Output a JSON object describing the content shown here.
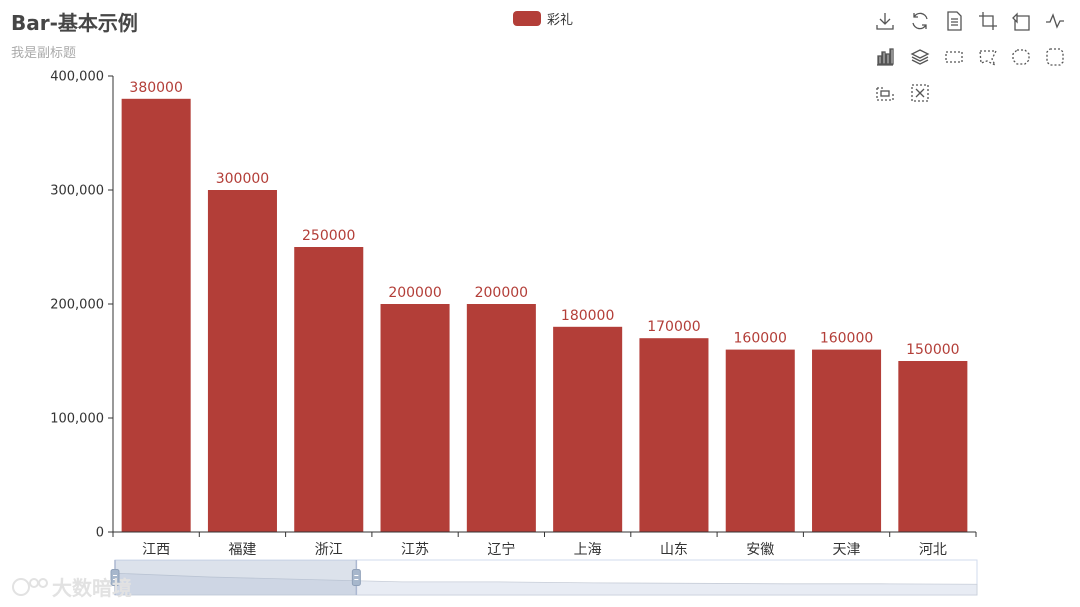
{
  "chart_data": {
    "type": "bar",
    "title": "Bar-基本示例",
    "subtitle": "我是副标题",
    "categories": [
      "江西",
      "福建",
      "浙江",
      "江苏",
      "辽宁",
      "上海",
      "山东",
      "安徽",
      "天津",
      "河北"
    ],
    "series": [
      {
        "name": "彩礼",
        "values": [
          380000,
          300000,
          250000,
          200000,
          200000,
          180000,
          170000,
          160000,
          160000,
          150000
        ],
        "color": "#b33e38"
      }
    ],
    "ylim": [
      0,
      400000
    ],
    "yticks": [
      0,
      100000,
      200000,
      300000,
      400000
    ],
    "ytick_labels": [
      "0",
      "100,000",
      "200,000",
      "300,000",
      "400,000"
    ],
    "legend_position": "top-center",
    "grid": false,
    "datazoom": {
      "start_fraction": 0,
      "end_fraction": 0.28
    }
  },
  "toolbox": {
    "icons": [
      "download-icon",
      "refresh-icon",
      "data-view-icon",
      "zoom-icon",
      "zoom-back-icon",
      "line-chart-icon",
      "bar-chart-icon",
      "stack-icon",
      "rect-select-icon",
      "polygon-select-icon",
      "keep-select-icon",
      "clear-select-icon",
      "brush-icon",
      "clear-brush-icon"
    ]
  },
  "watermark": {
    "text": "大数暗境"
  },
  "colors": {
    "bar": "#b33e38",
    "axis": "#333333",
    "label": "#b33e38"
  }
}
